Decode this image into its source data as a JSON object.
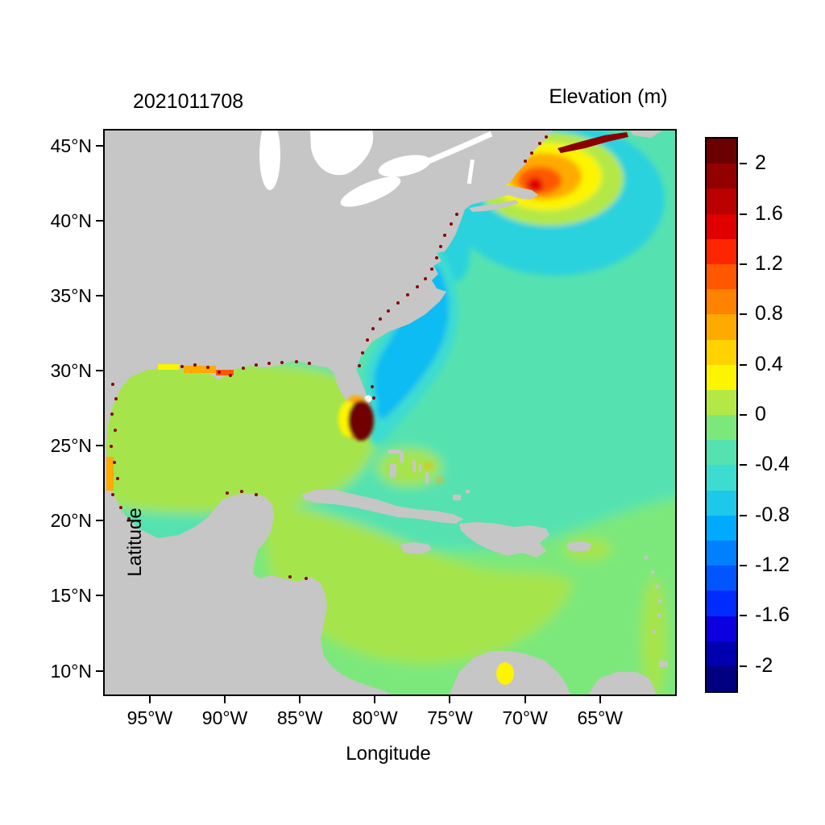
{
  "chart": {
    "timestamp_title": "2021011708",
    "colorbar_title": "Elevation (m)",
    "xlabel": "Longitude",
    "ylabel": "Latitude",
    "x_ticks": [
      "95°W",
      "90°W",
      "85°W",
      "80°W",
      "75°W",
      "70°W",
      "65°W"
    ],
    "y_ticks": [
      "45°N",
      "40°N",
      "35°N",
      "30°N",
      "25°N",
      "20°N",
      "15°N",
      "10°N"
    ]
  },
  "colors": {
    "land": "#c6c6c6",
    "lake": "#ffffff",
    "ocean_teal": "#55e2b0",
    "tropic_green": "#7ce87c",
    "gulf_green": "#a6e44b",
    "cyan_outer": "#3cdcd0",
    "cyan_mid": "#2ad2de",
    "cyan_inner": "#0fbcf2",
    "surge_halo": "#b4e846",
    "surge_yellow": "#fcf400",
    "surge_orange": "#ffaa00",
    "surge_red_orange": "#ff5800",
    "surge_red": "#e00000",
    "dark_red": "#8b0000",
    "florida_dark_red": "#700000",
    "speckle": "#8b0000"
  },
  "chart_data": {
    "type": "heatmap",
    "title": "2021011708",
    "variable": "Elevation",
    "units": "m",
    "xlabel": "Longitude",
    "ylabel": "Latitude",
    "x_range_deg_west": [
      98,
      60
    ],
    "y_range_deg_north": [
      8.4,
      46
    ],
    "x_tick_values_deg_west": [
      95,
      90,
      85,
      80,
      75,
      70,
      65
    ],
    "y_tick_values_deg_north": [
      45,
      40,
      35,
      30,
      25,
      20,
      15,
      10
    ],
    "grid": false,
    "colorbar": {
      "title": "Elevation (m)",
      "vmin": -2.2,
      "vmax": 2.2,
      "cell_step": 0.2,
      "tick_values": [
        2,
        1.6,
        1.2,
        0.8,
        0.4,
        0,
        -0.4,
        -0.8,
        -1.2,
        -1.6,
        -2
      ],
      "tick_labels": [
        "2",
        "1.6",
        "1.2",
        "0.8",
        "0.4",
        "0",
        "-0.4",
        "-0.8",
        "-1.2",
        "-1.6",
        "-2"
      ],
      "colors_top_to_bottom": [
        "#6b0000",
        "#930000",
        "#bb0000",
        "#e00000",
        "#fe2600",
        "#ff5800",
        "#ff8200",
        "#ffaa00",
        "#ffd200",
        "#fcf400",
        "#b4e846",
        "#7ce87c",
        "#55e2b0",
        "#3cdcd0",
        "#1ec8ea",
        "#00aaff",
        "#0080ff",
        "#0055ff",
        "#002bff",
        "#0d00e0",
        "#0000b0",
        "#000080"
      ]
    },
    "regions": [
      {
        "region": "Open Atlantic (east half of domain)",
        "elevation_m": -0.3
      },
      {
        "region": "Gulf of Mexico basin",
        "elevation_m": 0.1
      },
      {
        "region": "Western Caribbean Sea",
        "elevation_m": 0.1
      },
      {
        "region": "Tropical Atlantic south of 20N",
        "elevation_m": 0.0
      },
      {
        "region": "US southeast shelf (Carolinas to Florida coast)",
        "elevation_m": -0.7
      },
      {
        "region": "Mid-Atlantic bight off New Jersey/Delmarva",
        "elevation_m": -0.5
      },
      {
        "region": "Long Island Sound / New England surge maximum",
        "elevation_m": 1.5
      },
      {
        "region": "Bay of Fundy",
        "elevation_m": 2.2
      },
      {
        "region": "South Florida / Everglades flooded area",
        "elevation_m": 2.2
      },
      {
        "region": "Louisiana coastal patch",
        "elevation_m": 0.6
      },
      {
        "region": "Bahama banks patch",
        "elevation_m": 0.2
      },
      {
        "region": "Lake Maracaibo",
        "elevation_m": 0.4
      },
      {
        "region": "Scattered coastal wet cells (dark red speckles)",
        "elevation_m": 2.0
      }
    ]
  }
}
